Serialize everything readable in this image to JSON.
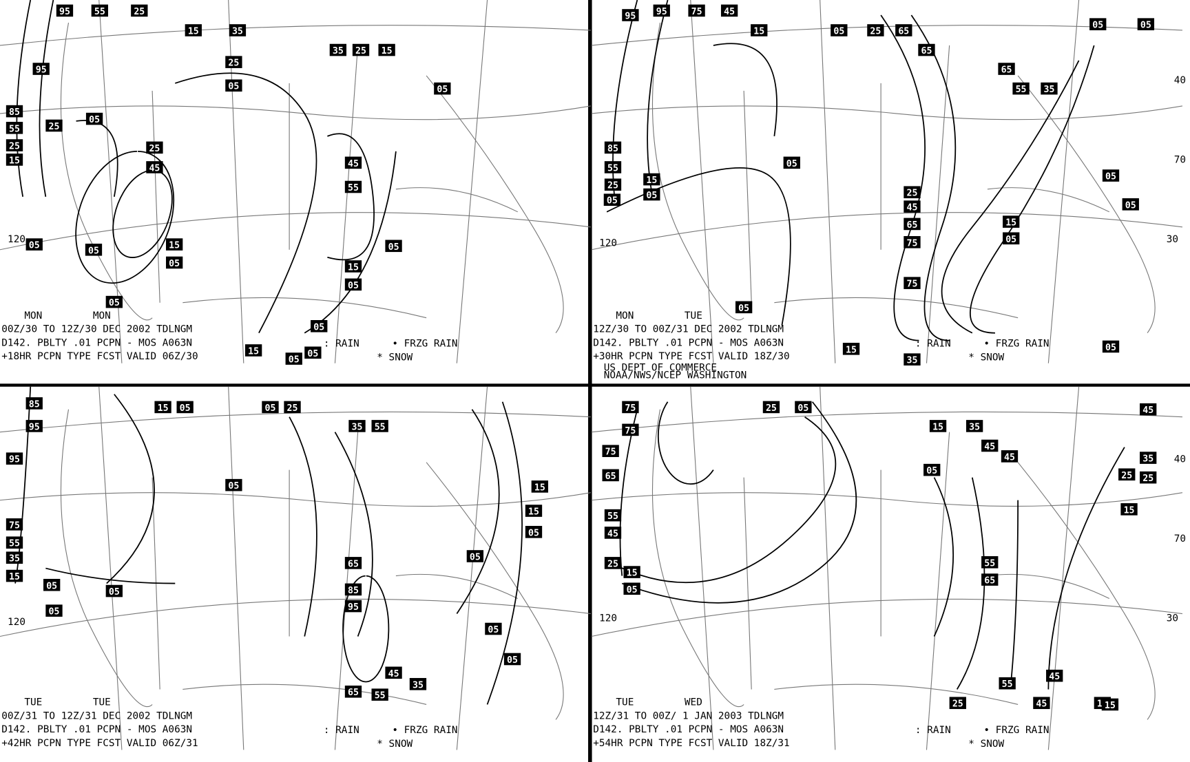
{
  "panels": [
    {
      "day_labels": [
        "MON",
        "MON"
      ],
      "lines": [
        "00Z/30 TO 12Z/30 DEC 2002  TDLNGM",
        "D142. PBLTY .01 PCPN - MOS A063N",
        "+18HR PCPN TYPE FCST VALID 06Z/30"
      ],
      "legend": [
        ": RAIN",
        "• FRZG RAIN",
        "* SNOW"
      ],
      "grid_labels": [
        "120"
      ],
      "contour_labels": [
        "95",
        "55",
        "25",
        "15",
        "35",
        "25",
        "05",
        "35",
        "25",
        "15",
        "05",
        "95",
        "85",
        "55",
        "25",
        "25",
        "15",
        "05",
        "25",
        "45",
        "15",
        "05",
        "05",
        "05",
        "05",
        "45",
        "55",
        "15",
        "05",
        "05",
        "05",
        "15",
        "05",
        "05"
      ]
    },
    {
      "day_labels": [
        "MON",
        "TUE"
      ],
      "lines": [
        "12Z/30 TO 00Z/31 DEC 2002  TDLNGM",
        "D142. PBLTY .01 PCPN - MOS A063N",
        "+30HR PCPN TYPE FCST VALID 18Z/30"
      ],
      "legend": [
        ": RAIN",
        "• FRZG RAIN",
        "* SNOW"
      ],
      "agency": [
        "US DEPT OF COMMERCE",
        "NOAA/NWS/NCEP WASHINGTON"
      ],
      "grid_labels": [
        "40",
        "70",
        "30",
        "120"
      ],
      "contour_labels": [
        "95",
        "95",
        "75",
        "45",
        "15",
        "05",
        "25",
        "65",
        "65",
        "05",
        "05",
        "85",
        "55",
        "25",
        "05",
        "15",
        "05",
        "05",
        "05",
        "25",
        "45",
        "65",
        "75",
        "75",
        "55",
        "35",
        "65",
        "15",
        "05",
        "15",
        "35",
        "05",
        "05",
        "05"
      ]
    },
    {
      "day_labels": [
        "TUE",
        "TUE"
      ],
      "lines": [
        "00Z/31 TO 12Z/31 DEC 2002  TDLNGM",
        "D142. PBLTY .01 PCPN - MOS A063N",
        "+42HR PCPN TYPE FCST VALID 06Z/31"
      ],
      "legend": [
        ": RAIN",
        "• FRZG RAIN",
        "* SNOW"
      ],
      "grid_labels": [
        "120"
      ],
      "contour_labels": [
        "85",
        "95",
        "95",
        "15",
        "05",
        "05",
        "25",
        "35",
        "55",
        "05",
        "75",
        "55",
        "35",
        "15",
        "05",
        "05",
        "05",
        "65",
        "85",
        "95",
        "65",
        "45",
        "55",
        "35",
        "05",
        "05",
        "05",
        "15",
        "15",
        "05"
      ]
    },
    {
      "day_labels": [
        "TUE",
        "WED"
      ],
      "lines": [
        "12Z/31 TO 00Z/ 1 JAN 2003  TDLNGM",
        "D142. PBLTY .01 PCPN - MOS A063N",
        "+54HR PCPN TYPE FCST VALID 18Z/31"
      ],
      "legend": [
        ": RAIN",
        "• FRZG RAIN",
        "* SNOW"
      ],
      "grid_labels": [
        "40",
        "70",
        "30",
        "120"
      ],
      "contour_labels": [
        "75",
        "75",
        "75",
        "65",
        "55",
        "45",
        "25",
        "15",
        "05",
        "25",
        "05",
        "15",
        "35",
        "45",
        "45",
        "55",
        "65",
        "05",
        "25",
        "45",
        "55",
        "45",
        "25",
        "15",
        "15",
        "45",
        "35",
        "25",
        "15"
      ]
    }
  ]
}
